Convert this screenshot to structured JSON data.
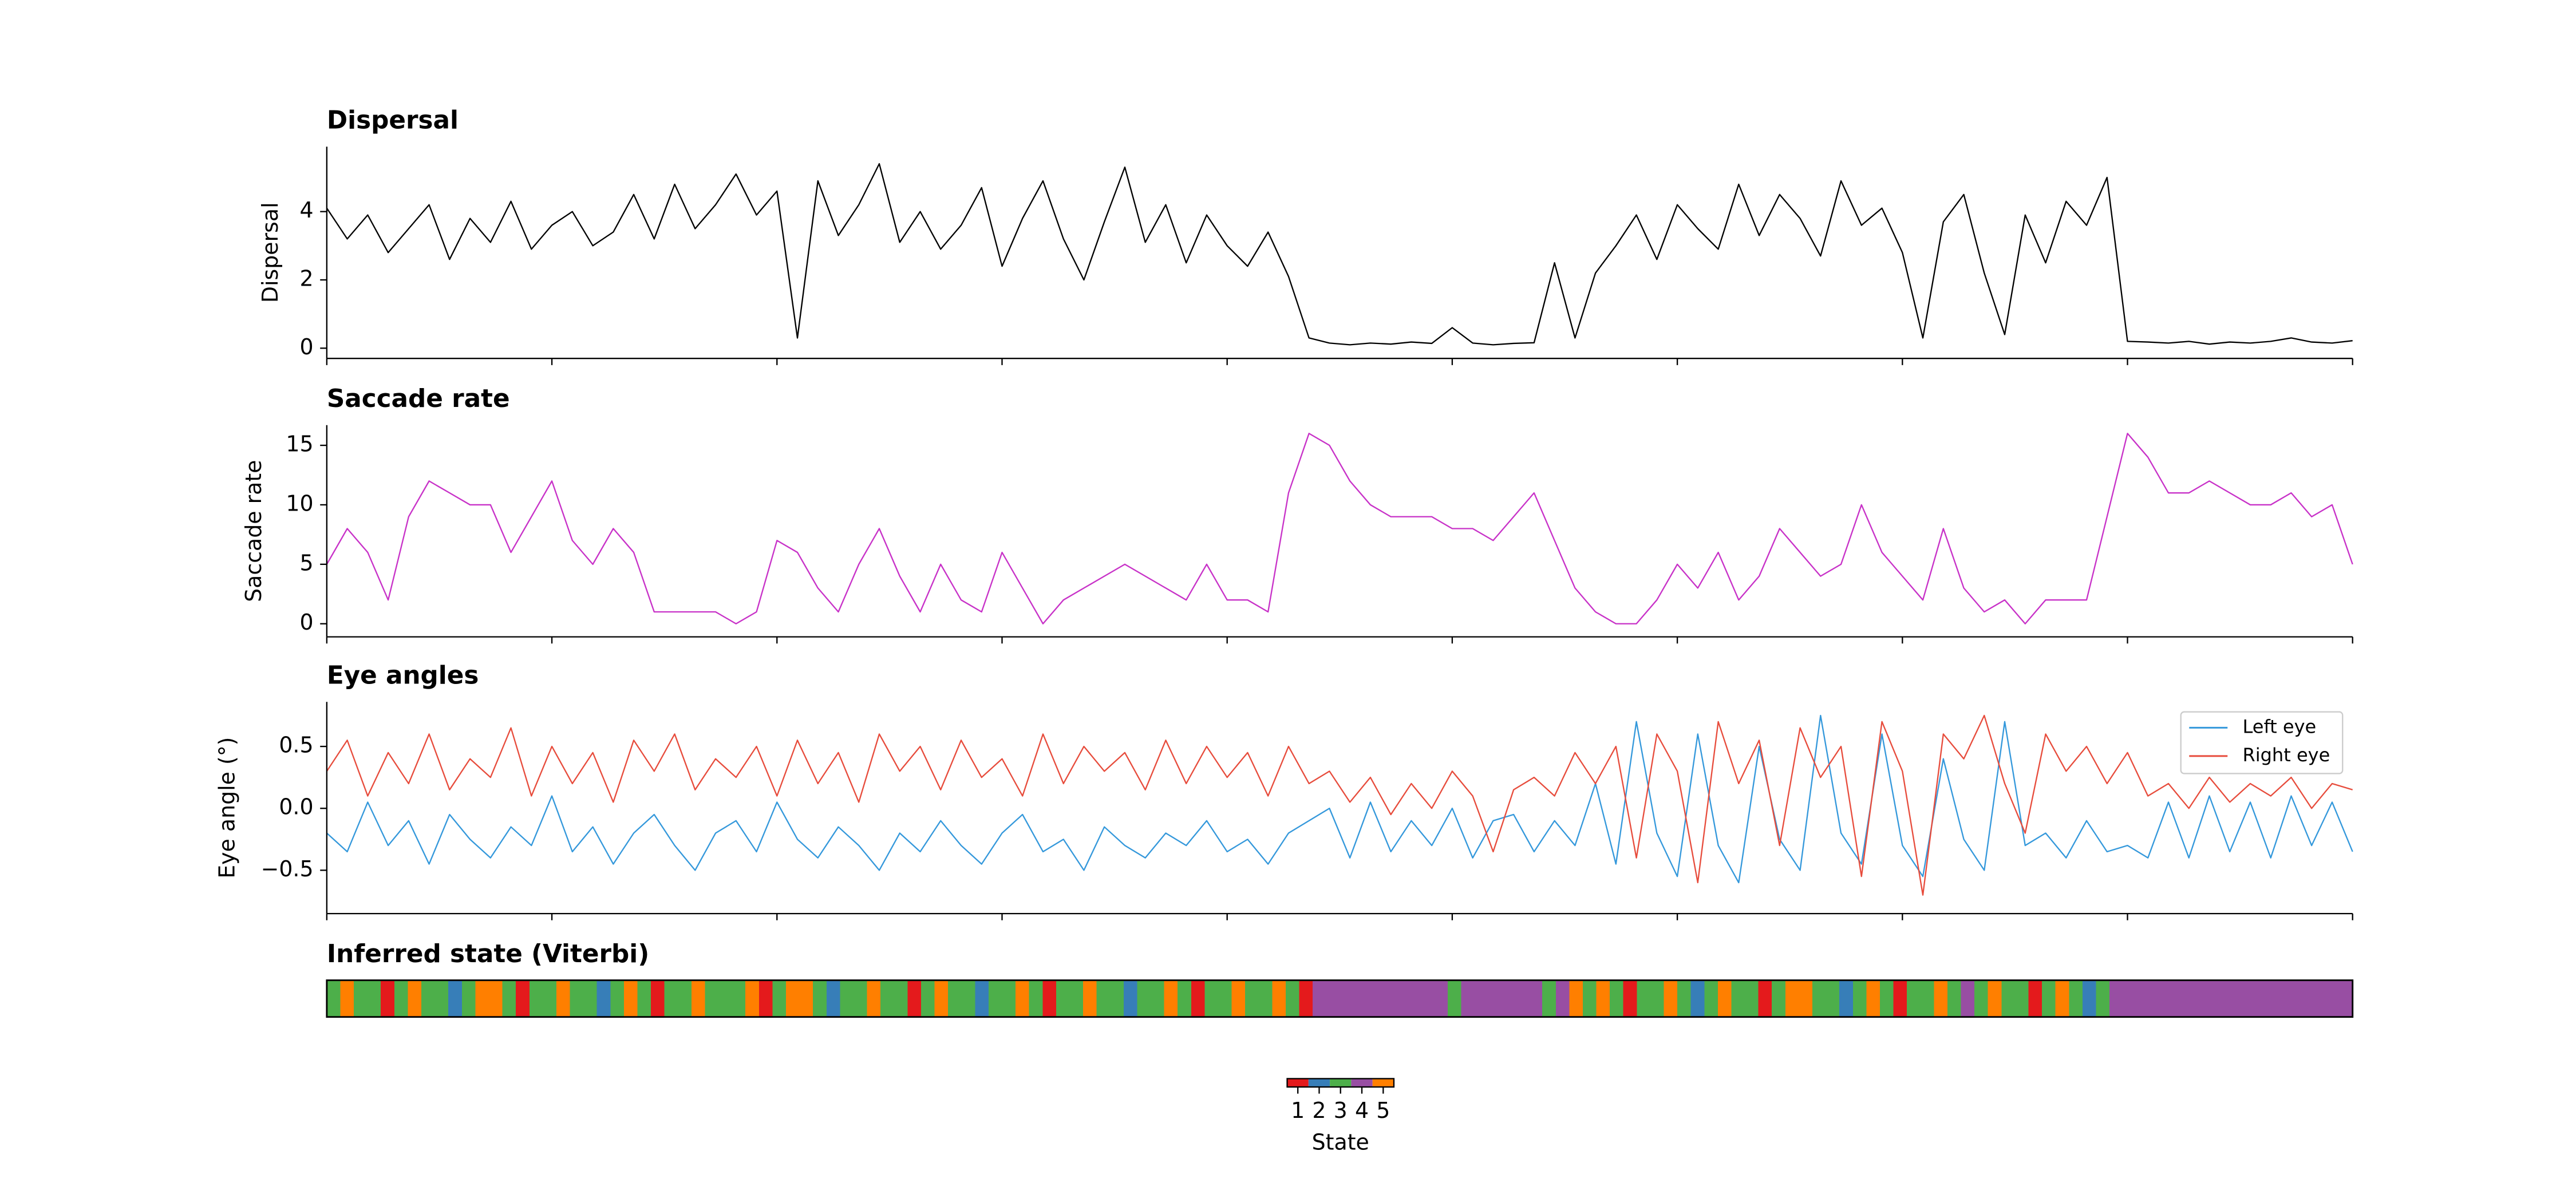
{
  "chart_data": [
    {
      "type": "line",
      "title": "Dispersal",
      "ylabel": "Dispersal",
      "ylim": [
        -0.3,
        5.9
      ],
      "yticks": [
        0,
        2,
        4
      ],
      "series": [
        {
          "color": "#000000",
          "values": [
            4.1,
            3.2,
            3.9,
            2.8,
            3.5,
            4.2,
            2.6,
            3.8,
            3.1,
            4.3,
            2.9,
            3.6,
            4.0,
            3.0,
            3.4,
            4.5,
            3.2,
            4.8,
            3.5,
            4.2,
            5.1,
            3.9,
            4.6,
            0.3,
            4.9,
            3.3,
            4.2,
            5.4,
            3.1,
            4.0,
            2.9,
            3.6,
            4.7,
            2.4,
            3.8,
            4.9,
            3.2,
            2.0,
            3.7,
            5.3,
            3.1,
            4.2,
            2.5,
            3.9,
            3.0,
            2.4,
            3.4,
            2.1,
            0.3,
            0.15,
            0.1,
            0.15,
            0.12,
            0.18,
            0.14,
            0.6,
            0.15,
            0.1,
            0.14,
            0.16,
            2.5,
            0.3,
            2.2,
            3.0,
            3.9,
            2.6,
            4.2,
            3.5,
            2.9,
            4.8,
            3.3,
            4.5,
            3.8,
            2.7,
            4.9,
            3.6,
            4.1,
            2.8,
            0.3,
            3.7,
            4.5,
            2.2,
            0.4,
            3.9,
            2.5,
            4.3,
            3.6,
            5.0,
            0.2,
            0.18,
            0.15,
            0.2,
            0.12,
            0.18,
            0.15,
            0.2,
            0.3,
            0.18,
            0.15,
            0.22
          ]
        }
      ]
    },
    {
      "type": "line",
      "title": "Saccade rate",
      "ylabel": "Saccade rate",
      "ylim": [
        -1.1,
        16.7
      ],
      "yticks": [
        0,
        5,
        10,
        15
      ],
      "series": [
        {
          "color": "#c832c8",
          "values": [
            5,
            8,
            6,
            2,
            9,
            12,
            11,
            10,
            10,
            6,
            9,
            12,
            7,
            5,
            8,
            6,
            1,
            1,
            1,
            1,
            0,
            1,
            7,
            6,
            3,
            1,
            5,
            8,
            4,
            1,
            5,
            2,
            1,
            6,
            3,
            0,
            2,
            3,
            4,
            5,
            4,
            3,
            2,
            5,
            2,
            2,
            1,
            11,
            16,
            15,
            12,
            10,
            9,
            9,
            9,
            8,
            8,
            7,
            9,
            11,
            7,
            3,
            1,
            0,
            0,
            2,
            5,
            3,
            6,
            2,
            4,
            8,
            6,
            4,
            5,
            10,
            6,
            4,
            2,
            8,
            3,
            1,
            2,
            0,
            2,
            2,
            2,
            9,
            16,
            14,
            11,
            11,
            12,
            11,
            10,
            10,
            11,
            9,
            10,
            5
          ]
        }
      ]
    },
    {
      "type": "line",
      "title": "Eye angles",
      "ylabel": "Eye angle (°)",
      "ylim": [
        -0.85,
        0.86
      ],
      "yticks": [
        {
          "value": -0.5,
          "label": "−0.5"
        },
        {
          "value": 0,
          "label": "0.0"
        },
        {
          "value": 0.5,
          "label": "0.5"
        }
      ],
      "legend": "upper right",
      "series": [
        {
          "name": "Left eye",
          "color": "#3498db",
          "values": [
            -0.2,
            -0.35,
            0.05,
            -0.3,
            -0.1,
            -0.45,
            -0.05,
            -0.25,
            -0.4,
            -0.15,
            -0.3,
            0.1,
            -0.35,
            -0.15,
            -0.45,
            -0.2,
            -0.05,
            -0.3,
            -0.5,
            -0.2,
            -0.1,
            -0.35,
            0.05,
            -0.25,
            -0.4,
            -0.15,
            -0.3,
            -0.5,
            -0.2,
            -0.35,
            -0.1,
            -0.3,
            -0.45,
            -0.2,
            -0.05,
            -0.35,
            -0.25,
            -0.5,
            -0.15,
            -0.3,
            -0.4,
            -0.2,
            -0.3,
            -0.1,
            -0.35,
            -0.25,
            -0.45,
            -0.2,
            -0.1,
            0.0,
            -0.4,
            0.05,
            -0.35,
            -0.1,
            -0.3,
            0.0,
            -0.4,
            -0.1,
            -0.05,
            -0.35,
            -0.1,
            -0.3,
            0.2,
            -0.45,
            0.7,
            -0.2,
            -0.55,
            0.6,
            -0.3,
            -0.6,
            0.5,
            -0.25,
            -0.5,
            0.75,
            -0.2,
            -0.45,
            0.6,
            -0.3,
            -0.55,
            0.4,
            -0.25,
            -0.5,
            0.7,
            -0.3,
            -0.2,
            -0.4,
            -0.1,
            -0.35,
            -0.3,
            -0.4,
            0.05,
            -0.4,
            0.1,
            -0.35,
            0.05,
            -0.4,
            0.1,
            -0.3,
            0.05,
            -0.35
          ]
        },
        {
          "name": "Right eye",
          "color": "#e74c3c",
          "values": [
            0.3,
            0.55,
            0.1,
            0.45,
            0.2,
            0.6,
            0.15,
            0.4,
            0.25,
            0.65,
            0.1,
            0.5,
            0.2,
            0.45,
            0.05,
            0.55,
            0.3,
            0.6,
            0.15,
            0.4,
            0.25,
            0.5,
            0.1,
            0.55,
            0.2,
            0.45,
            0.05,
            0.6,
            0.3,
            0.5,
            0.15,
            0.55,
            0.25,
            0.4,
            0.1,
            0.6,
            0.2,
            0.5,
            0.3,
            0.45,
            0.15,
            0.55,
            0.2,
            0.5,
            0.25,
            0.45,
            0.1,
            0.5,
            0.2,
            0.3,
            0.05,
            0.25,
            -0.05,
            0.2,
            0.0,
            0.3,
            0.1,
            -0.35,
            0.15,
            0.25,
            0.1,
            0.45,
            0.2,
            0.5,
            -0.4,
            0.6,
            0.3,
            -0.6,
            0.7,
            0.2,
            0.55,
            -0.3,
            0.65,
            0.25,
            0.5,
            -0.55,
            0.7,
            0.3,
            -0.7,
            0.6,
            0.4,
            0.75,
            0.2,
            -0.2,
            0.6,
            0.3,
            0.5,
            0.2,
            0.45,
            0.1,
            0.2,
            0.0,
            0.25,
            0.05,
            0.2,
            0.1,
            0.25,
            0.0,
            0.2,
            0.15
          ]
        }
      ]
    },
    {
      "type": "heatmap",
      "title": "Inferred state (Viterbi)",
      "values": [
        3,
        5,
        3,
        3,
        1,
        3,
        5,
        3,
        3,
        2,
        3,
        5,
        5,
        3,
        1,
        3,
        3,
        5,
        3,
        3,
        2,
        3,
        5,
        3,
        1,
        3,
        3,
        5,
        3,
        3,
        3,
        5,
        1,
        3,
        5,
        5,
        3,
        2,
        3,
        3,
        5,
        3,
        3,
        1,
        3,
        5,
        3,
        3,
        2,
        3,
        3,
        5,
        3,
        1,
        3,
        3,
        5,
        3,
        3,
        2,
        3,
        3,
        5,
        3,
        1,
        3,
        3,
        5,
        3,
        3,
        5,
        3,
        1,
        4,
        4,
        4,
        4,
        4,
        4,
        4,
        4,
        4,
        4,
        3,
        4,
        4,
        4,
        4,
        4,
        4,
        3,
        4,
        5,
        3,
        5,
        3,
        1,
        3,
        3,
        5,
        3,
        2,
        3,
        5,
        3,
        3,
        1,
        3,
        5,
        5,
        3,
        3,
        2,
        3,
        5,
        3,
        1,
        3,
        3,
        5,
        3,
        4,
        3,
        5,
        3,
        3,
        1,
        3,
        5,
        3,
        2,
        3,
        4,
        4,
        4,
        4,
        4,
        4,
        4,
        4,
        4,
        4,
        4,
        4,
        4,
        4,
        4,
        4,
        4,
        4
      ],
      "state_ticks": [
        1,
        2,
        3,
        4,
        5
      ],
      "state_colors": [
        "#e41a1c",
        "#377eb8",
        "#4daf4a",
        "#984ea3",
        "#ff7f00"
      ],
      "colorbar_label": "State"
    }
  ]
}
